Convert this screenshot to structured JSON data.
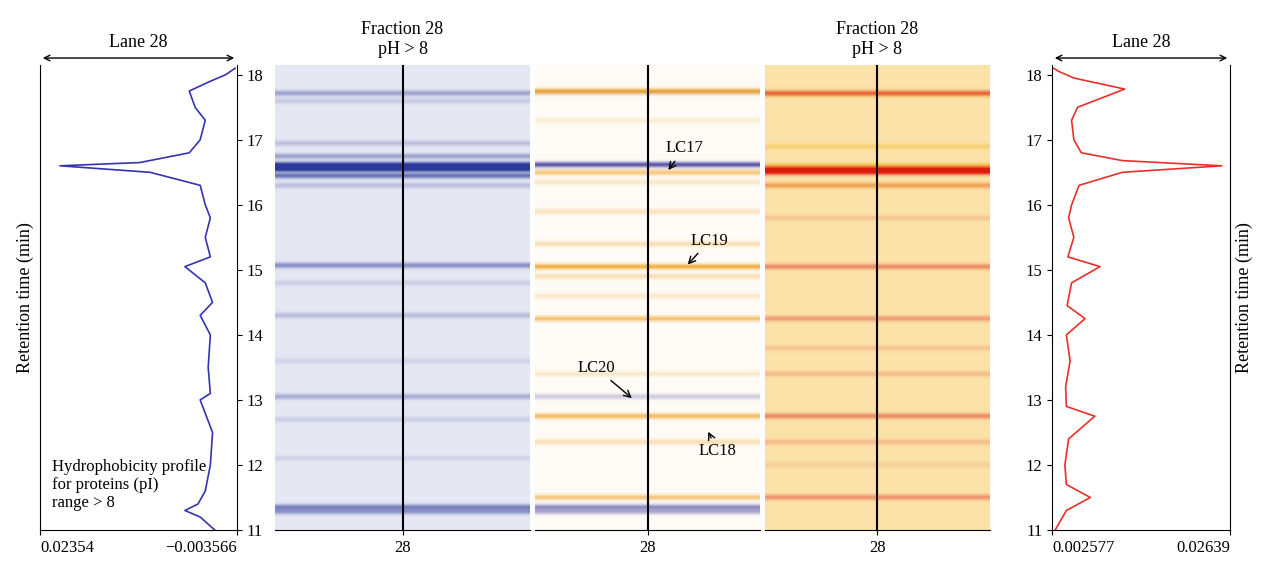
{
  "chart_data": [
    {
      "type": "line",
      "title": "Lane 28",
      "ylabel": "Retention time (min)",
      "annotation": "Hydrophobicity profile\nfor proteins (pI)\nrange > 8",
      "color": "#3434b0",
      "x": [
        -0.0005,
        0.0015,
        0.0036,
        0.0018,
        0.0008,
        0.0001,
        -0.0002,
        0.0015,
        0.0001,
        0.0004,
        0.0001,
        0.0015,
        -0.0002,
        0.0008,
        0.0036,
        0.0001,
        0.0008,
        0.0001,
        0.0008,
        0.0015,
        0.0084,
        0.0208,
        0.0098,
        0.003,
        0.0015,
        0.0008,
        0.0022,
        0.003,
        0.0001,
        -0.002,
        -0.0033
      ],
      "y": [
        11.0,
        11.2,
        11.3,
        11.4,
        11.6,
        12.0,
        12.5,
        13.0,
        13.1,
        13.5,
        14.0,
        14.3,
        14.5,
        14.8,
        15.05,
        15.2,
        15.5,
        15.8,
        16.0,
        16.3,
        16.5,
        16.6,
        16.65,
        16.8,
        17.0,
        17.3,
        17.5,
        17.75,
        17.9,
        18.0,
        18.1
      ],
      "xlim": [
        0.02354,
        -0.003566
      ],
      "xticks": [
        0.02354,
        {
          "value": -0.003566,
          "label": "−0.003566"
        }
      ],
      "ylim": [
        11,
        18.15
      ],
      "yticks": [
        11,
        12,
        13,
        14,
        15,
        16,
        17,
        18
      ]
    },
    {
      "type": "heatmap",
      "title": "Fraction 28\npH > 8",
      "xlim": [
        27,
        29
      ],
      "xticks": [
        28
      ],
      "ylim": [
        11,
        18.15
      ],
      "tick_labels": "x",
      "series": [
        {
          "color": "#2b3a9a",
          "background": 0.12,
          "bands": {
            "rt": [
              17.72,
              17.6,
              16.95,
              16.75,
              16.62,
              16.55,
              16.45,
              16.3,
              15.07,
              14.8,
              14.3,
              13.6,
              13.05,
              12.7,
              12.1,
              11.35,
              11.28
            ],
            "intensity": [
              0.35,
              0.15,
              0.2,
              0.35,
              0.9,
              0.9,
              0.6,
              0.2,
              0.45,
              0.12,
              0.22,
              0.1,
              0.3,
              0.12,
              0.1,
              0.5,
              0.4
            ]
          }
        }
      ]
    },
    {
      "type": "heatmap",
      "xlim": [
        27,
        29
      ],
      "xticks": [
        28
      ],
      "ylim": [
        11,
        18.15
      ],
      "tick_labels": "x",
      "series": [
        {
          "color": "#3c3aa0",
          "background": 0.0,
          "bands": {
            "rt": [
              16.62,
              13.05,
              11.35,
              11.28,
              17.72
            ],
            "intensity": [
              0.85,
              0.25,
              0.55,
              0.4,
              0.1
            ]
          }
        },
        {
          "color": "#f0a020",
          "background": 0.04,
          "bands": {
            "rt": [
              17.75,
              16.5,
              16.35,
              15.9,
              15.4,
              15.05,
              14.9,
              14.6,
              14.25,
              13.4,
              12.75,
              12.35,
              11.5,
              17.3
            ],
            "intensity": [
              0.85,
              0.55,
              0.2,
              0.25,
              0.3,
              0.8,
              0.3,
              0.2,
              0.6,
              0.2,
              0.65,
              0.3,
              0.55,
              0.15
            ]
          }
        }
      ],
      "annotations": [
        {
          "text": "LC17",
          "x": 28.17,
          "y": 16.5
        },
        {
          "text": "LC19",
          "x": 28.34,
          "y": 15.05
        },
        {
          "text": "LC20",
          "x": 27.88,
          "y": 13.0
        },
        {
          "text": "LC18",
          "x": 28.53,
          "y": 12.55
        }
      ]
    },
    {
      "type": "heatmap",
      "title": "Fraction 28\npH > 8",
      "xlim": [
        27,
        29
      ],
      "xticks": [
        28
      ],
      "ylim": [
        11,
        18.15
      ],
      "tick_labels": "x",
      "series": [
        {
          "color": "#f5c040",
          "background": 0.45,
          "bands": {
            "rt": [
              16.6,
              16.3,
              16.9,
              17.7
            ],
            "intensity": [
              0.5,
              0.3,
              0.3,
              0.3
            ]
          }
        },
        {
          "color": "#e02010",
          "background": 0.0,
          "bands": {
            "rt": [
              17.72,
              16.55,
              16.5,
              16.3,
              15.05,
              14.25,
              13.4,
              12.75,
              12.35,
              11.5,
              13.8,
              15.8,
              12.0
            ],
            "intensity": [
              0.6,
              0.95,
              0.8,
              0.25,
              0.45,
              0.35,
              0.2,
              0.45,
              0.2,
              0.4,
              0.15,
              0.15,
              0.1
            ]
          }
        }
      ]
    },
    {
      "type": "line",
      "title": "Lane 28",
      "ylabel": "Retention time (min)",
      "color": "#e8302a",
      "x": [
        0.003,
        0.0045,
        0.0077,
        0.0045,
        0.0043,
        0.0048,
        0.0083,
        0.0045,
        0.0044,
        0.005,
        0.0045,
        0.007,
        0.0046,
        0.0052,
        0.009,
        0.0047,
        0.0055,
        0.0048,
        0.0052,
        0.0062,
        0.012,
        0.0253,
        0.012,
        0.0065,
        0.0055,
        0.0052,
        0.006,
        0.0123,
        0.0055,
        0.0035,
        0.0028
      ],
      "y": [
        11.0,
        11.3,
        11.5,
        11.7,
        12.0,
        12.4,
        12.75,
        12.9,
        13.2,
        13.6,
        14.0,
        14.25,
        14.45,
        14.8,
        15.05,
        15.2,
        15.5,
        15.8,
        16.0,
        16.3,
        16.5,
        16.6,
        16.68,
        16.8,
        17.0,
        17.3,
        17.5,
        17.78,
        17.95,
        18.05,
        18.1
      ],
      "xlim": [
        0.002577,
        0.02639
      ],
      "xticks": [
        0.002577,
        0.02639
      ],
      "ylim": [
        11,
        18.15
      ],
      "yticks": [
        11,
        12,
        13,
        14,
        15,
        16,
        17,
        18
      ]
    }
  ]
}
